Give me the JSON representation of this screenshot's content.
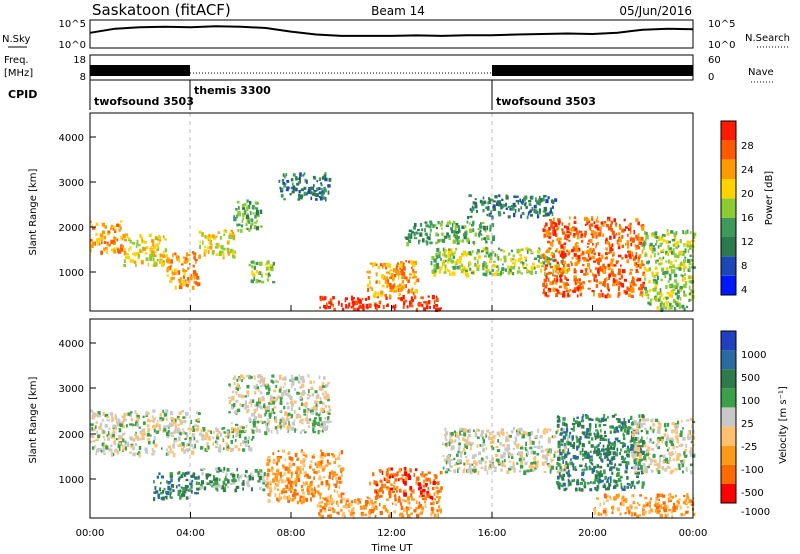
{
  "header": {
    "station": "Saskatoon (fitACF)",
    "beam": "Beam 14",
    "date": "05/Jun/2016"
  },
  "colors": {
    "power_scale": [
      "#0018ff",
      "#1e46b4",
      "#2a7a4e",
      "#3e9a5a",
      "#8ccc32",
      "#ffd200",
      "#ff9a00",
      "#ff5a00",
      "#ff1a00"
    ],
    "velocity_scale": [
      "#ff0000",
      "#ff6a00",
      "#ff9a1a",
      "#ffc070",
      "#c8c8c8",
      "#3aa04a",
      "#2f7a4a",
      "#2a6aa0",
      "#2040c0"
    ],
    "frame": "#000000",
    "divider": "#bdbdbd"
  },
  "chart_data": [
    {
      "type": "line",
      "panel": "noise",
      "series": [
        {
          "name": "N.Sky",
          "style": "solid"
        },
        {
          "name": "N.Search",
          "style": "dotted"
        }
      ],
      "left_ticks": [
        "10^5",
        "10^0"
      ],
      "right_ticks": [
        "10^5",
        "10^0"
      ],
      "x_hours": [
        0,
        1,
        2,
        3,
        4,
        5,
        6,
        7,
        8,
        9,
        10,
        11,
        12,
        13,
        14,
        15,
        16,
        17,
        18,
        19,
        20,
        21,
        22,
        23,
        24
      ],
      "sky_level": [
        0.55,
        0.72,
        0.78,
        0.8,
        0.78,
        0.82,
        0.8,
        0.75,
        0.6,
        0.48,
        0.42,
        0.42,
        0.42,
        0.44,
        0.42,
        0.45,
        0.45,
        0.48,
        0.5,
        0.52,
        0.5,
        0.55,
        0.68,
        0.72,
        0.7
      ]
    },
    {
      "type": "line",
      "panel": "frequency",
      "ylabel": "Freq.\n[MHz]",
      "left_ticks": [
        "18",
        "8"
      ],
      "right_ticks": [
        "60",
        "0"
      ],
      "series": [
        {
          "name": "Nave",
          "style": "dotted"
        }
      ],
      "segments_h": [
        [
          0,
          4
        ],
        [
          16,
          24
        ]
      ],
      "dotted_h": [
        [
          4,
          16
        ]
      ]
    },
    {
      "type": "table",
      "panel": "cpid",
      "label": "CPID",
      "programs": [
        {
          "name": "twofsound 3503",
          "start_h": 0,
          "end_h": 4
        },
        {
          "name": "themis 3300",
          "start_h": 4,
          "end_h": 16
        },
        {
          "name": "twofsound 3503",
          "start_h": 16,
          "end_h": 24
        }
      ]
    },
    {
      "type": "heatmap",
      "panel": "power",
      "ylabel": "Slant Range [km]",
      "yticks": [
        1000,
        2000,
        3000,
        4000
      ],
      "ylim": [
        180,
        4600
      ],
      "colorbar_label": "Power [dB]",
      "colorbar_ticks": [
        "28",
        "24",
        "20",
        "16",
        "12",
        "8",
        "4"
      ],
      "scatter_echoes": [
        {
          "h0": 0.0,
          "h1": 1.3,
          "r0": 1500,
          "r1": 2200,
          "level": 6
        },
        {
          "h0": 1.3,
          "h1": 3.0,
          "r0": 1200,
          "r1": 1900,
          "level": 5
        },
        {
          "h0": 3.0,
          "h1": 4.3,
          "r0": 700,
          "r1": 1500,
          "level": 6
        },
        {
          "h0": 4.3,
          "h1": 5.7,
          "r0": 1400,
          "r1": 2000,
          "level": 5
        },
        {
          "h0": 5.7,
          "h1": 6.8,
          "r0": 2000,
          "r1": 2700,
          "level": 3
        },
        {
          "h0": 6.3,
          "h1": 7.3,
          "r0": 800,
          "r1": 1300,
          "level": 4
        },
        {
          "h0": 7.5,
          "h1": 9.5,
          "r0": 2700,
          "r1": 3300,
          "level": 2
        },
        {
          "h0": 9.0,
          "h1": 14.0,
          "r0": 200,
          "r1": 500,
          "level": 8
        },
        {
          "h0": 11.0,
          "h1": 13.0,
          "r0": 500,
          "r1": 1300,
          "level": 6
        },
        {
          "h0": 12.5,
          "h1": 16.0,
          "r0": 1700,
          "r1": 2200,
          "level": 3
        },
        {
          "h0": 13.5,
          "h1": 19.0,
          "r0": 1000,
          "r1": 1600,
          "level": 4
        },
        {
          "h0": 15.0,
          "h1": 18.5,
          "r0": 2300,
          "r1": 2800,
          "level": 2
        },
        {
          "h0": 18.0,
          "h1": 22.0,
          "r0": 500,
          "r1": 2300,
          "level": 7
        },
        {
          "h0": 22.0,
          "h1": 24.0,
          "r0": 200,
          "r1": 2000,
          "level": 4
        }
      ]
    },
    {
      "type": "heatmap",
      "panel": "velocity",
      "ylabel": "Slant Range [km]",
      "yticks": [
        1000,
        2000,
        3000,
        4000
      ],
      "ylim": [
        180,
        4600
      ],
      "xticks": [
        "00:00",
        "04:00",
        "08:00",
        "12:00",
        "16:00",
        "20:00",
        "00:00"
      ],
      "xlabel": "Time UT",
      "colorbar_label": "Velocity [m s⁻¹]",
      "colorbar_ticks": [
        "1000",
        "500",
        "100",
        "25",
        "-25",
        "-100",
        "-500",
        "-1000"
      ],
      "scatter_echoes": [
        {
          "h0": 0.0,
          "h1": 4.3,
          "r0": 1600,
          "r1": 2600,
          "level": 4
        },
        {
          "h0": 2.5,
          "h1": 4.3,
          "r0": 600,
          "r1": 1200,
          "level": 6
        },
        {
          "h0": 4.3,
          "h1": 7.0,
          "r0": 800,
          "r1": 1300,
          "level": 5
        },
        {
          "h0": 4.3,
          "h1": 6.5,
          "r0": 1700,
          "r1": 2200,
          "level": 4
        },
        {
          "h0": 5.5,
          "h1": 9.5,
          "r0": 2100,
          "r1": 3400,
          "level": 4
        },
        {
          "h0": 7.0,
          "h1": 10.0,
          "r0": 500,
          "r1": 1700,
          "level": 2
        },
        {
          "h0": 9.0,
          "h1": 14.0,
          "r0": 200,
          "r1": 600,
          "level": 2
        },
        {
          "h0": 11.0,
          "h1": 14.0,
          "r0": 600,
          "r1": 1300,
          "level": 1
        },
        {
          "h0": 14.0,
          "h1": 19.0,
          "r0": 1200,
          "r1": 2200,
          "level": 4
        },
        {
          "h0": 18.5,
          "h1": 22.0,
          "r0": 800,
          "r1": 2500,
          "level": 6
        },
        {
          "h0": 20.0,
          "h1": 24.0,
          "r0": 200,
          "r1": 700,
          "level": 2
        },
        {
          "h0": 21.5,
          "h1": 24.0,
          "r0": 1200,
          "r1": 2400,
          "level": 4
        }
      ]
    }
  ]
}
